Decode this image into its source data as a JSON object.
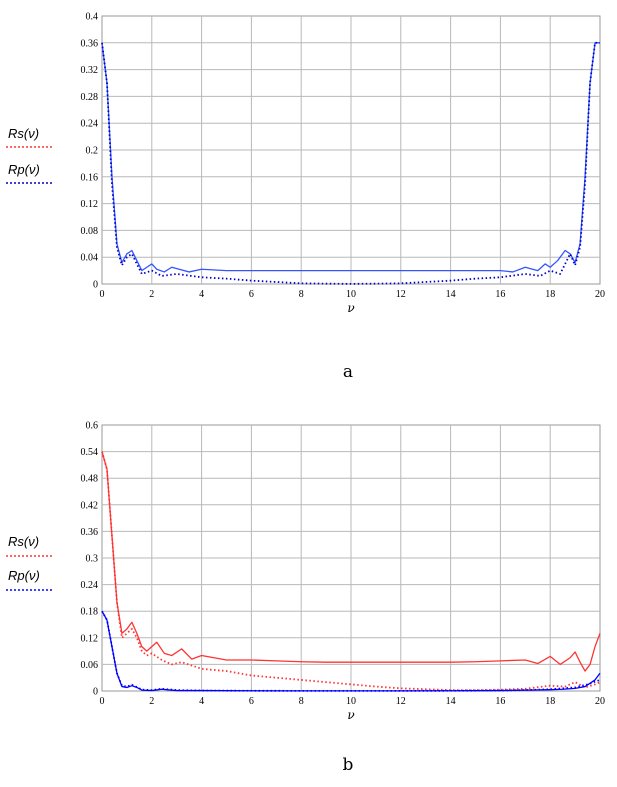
{
  "chart_data": [
    {
      "type": "line",
      "panel_label": "a",
      "xlabel": "ν",
      "xlim": [
        0,
        20
      ],
      "ylim": [
        0,
        0.4
      ],
      "xticks": [
        0,
        2,
        4,
        6,
        8,
        10,
        12,
        14,
        16,
        18,
        20
      ],
      "xtick_labels": [
        "0",
        "2",
        "4",
        "6",
        "8",
        "10",
        "12",
        "14",
        "16",
        "18",
        "20"
      ],
      "yticks": [
        0,
        0.04,
        0.08,
        0.12,
        0.16,
        0.2,
        0.24,
        0.28,
        0.32,
        0.36,
        0.4
      ],
      "ytick_labels": [
        "0",
        "0.04",
        "0.08",
        "0.12",
        "0.16",
        "0.2",
        "0.24",
        "0.28",
        "0.32",
        "0.36",
        "0.4"
      ],
      "grid": true,
      "legend_position": "left",
      "series": [
        {
          "name": "Rs(ν)",
          "color": "#3355ff",
          "style": "solid",
          "x": [
            0,
            0.2,
            0.4,
            0.6,
            0.8,
            1.0,
            1.2,
            1.4,
            1.6,
            1.8,
            2.0,
            2.2,
            2.5,
            2.8,
            3.1,
            3.5,
            4,
            5,
            6,
            7,
            8,
            9,
            10,
            11,
            12,
            13,
            14,
            15,
            16,
            16.5,
            17,
            17.5,
            17.8,
            18.0,
            18.3,
            18.6,
            18.8,
            19.0,
            19.2,
            19.4,
            19.6,
            19.8,
            20
          ],
          "y": [
            0.36,
            0.3,
            0.16,
            0.06,
            0.032,
            0.045,
            0.05,
            0.035,
            0.02,
            0.025,
            0.03,
            0.022,
            0.018,
            0.025,
            0.022,
            0.018,
            0.022,
            0.02,
            0.02,
            0.02,
            0.02,
            0.02,
            0.02,
            0.02,
            0.02,
            0.02,
            0.02,
            0.02,
            0.02,
            0.018,
            0.025,
            0.02,
            0.03,
            0.025,
            0.035,
            0.05,
            0.045,
            0.032,
            0.06,
            0.16,
            0.3,
            0.36,
            0.36
          ]
        },
        {
          "name": "Rp(ν)",
          "color": "#0000cc",
          "style": "dotted",
          "x": [
            0,
            0.2,
            0.4,
            0.6,
            0.8,
            1.0,
            1.2,
            1.4,
            1.6,
            2.0,
            2.4,
            3,
            4,
            5,
            6,
            7,
            8,
            9,
            10,
            11,
            12,
            13,
            14,
            15,
            16,
            17,
            17.6,
            18.0,
            18.4,
            18.6,
            18.8,
            19.0,
            19.2,
            19.4,
            19.6,
            19.8,
            20
          ],
          "y": [
            0.36,
            0.3,
            0.15,
            0.055,
            0.028,
            0.04,
            0.045,
            0.03,
            0.015,
            0.02,
            0.012,
            0.015,
            0.01,
            0.008,
            0.005,
            0.003,
            0.001,
            0.0005,
            0.0002,
            0.0005,
            0.001,
            0.003,
            0.005,
            0.008,
            0.01,
            0.015,
            0.012,
            0.02,
            0.015,
            0.03,
            0.045,
            0.028,
            0.055,
            0.15,
            0.3,
            0.36,
            0.36
          ]
        }
      ]
    },
    {
      "type": "line",
      "panel_label": "b",
      "xlabel": "ν",
      "xlim": [
        0,
        20
      ],
      "ylim": [
        0,
        0.6
      ],
      "xticks": [
        0,
        2,
        4,
        6,
        8,
        10,
        12,
        14,
        16,
        18,
        20
      ],
      "xtick_labels": [
        "0",
        "2",
        "4",
        "6",
        "8",
        "10",
        "12",
        "14",
        "16",
        "18",
        "20"
      ],
      "yticks": [
        0,
        0.06,
        0.12,
        0.18,
        0.24,
        0.3,
        0.36,
        0.42,
        0.48,
        0.54,
        0.6
      ],
      "ytick_labels": [
        "0",
        "0.06",
        "0.12",
        "0.18",
        "0.24",
        "0.3",
        "0.36",
        "0.42",
        "0.48",
        "0.54",
        "0.6"
      ],
      "grid": true,
      "legend_position": "left",
      "series": [
        {
          "name": "Rs(ν)",
          "color": "#ff3333",
          "style": "solid",
          "x": [
            0,
            0.2,
            0.4,
            0.6,
            0.8,
            1.0,
            1.2,
            1.4,
            1.6,
            1.8,
            2.0,
            2.2,
            2.5,
            2.8,
            3.2,
            3.6,
            4.0,
            5,
            6,
            7,
            8,
            9,
            10,
            11,
            12,
            13,
            14,
            15,
            16,
            17,
            17.5,
            18.0,
            18.4,
            18.8,
            19.0,
            19.2,
            19.4,
            19.6,
            19.8,
            20
          ],
          "y": [
            0.54,
            0.5,
            0.35,
            0.2,
            0.13,
            0.14,
            0.155,
            0.13,
            0.1,
            0.09,
            0.1,
            0.11,
            0.085,
            0.08,
            0.095,
            0.072,
            0.08,
            0.07,
            0.07,
            0.068,
            0.066,
            0.065,
            0.065,
            0.065,
            0.065,
            0.065,
            0.065,
            0.066,
            0.068,
            0.07,
            0.062,
            0.078,
            0.06,
            0.075,
            0.088,
            0.065,
            0.045,
            0.06,
            0.1,
            0.13
          ]
        },
        {
          "name": "",
          "color": "#ff3333",
          "style": "dotted",
          "x": [
            0,
            0.2,
            0.4,
            0.6,
            0.8,
            1.0,
            1.2,
            1.4,
            1.6,
            1.8,
            2.0,
            2.4,
            2.8,
            3.2,
            4,
            5,
            6,
            7,
            8,
            9,
            10,
            11,
            12,
            13,
            14,
            15,
            16,
            17,
            18,
            18.6,
            19.0,
            19.4,
            19.8,
            20
          ],
          "y": [
            0.54,
            0.5,
            0.35,
            0.2,
            0.12,
            0.13,
            0.14,
            0.12,
            0.09,
            0.08,
            0.085,
            0.07,
            0.06,
            0.065,
            0.05,
            0.045,
            0.035,
            0.03,
            0.025,
            0.02,
            0.015,
            0.01,
            0.006,
            0.004,
            0.002,
            0.002,
            0.003,
            0.005,
            0.012,
            0.01,
            0.02,
            0.008,
            0.015,
            0.02
          ]
        },
        {
          "name": "Rp(ν)",
          "color": "#0000ff",
          "style": "solid",
          "x": [
            0,
            0.2,
            0.4,
            0.6,
            0.8,
            1.0,
            1.2,
            1.4,
            1.6,
            2.0,
            2.4,
            3,
            4,
            6,
            8,
            10,
            12,
            14,
            16,
            17,
            18,
            18.5,
            19,
            19.4,
            19.8,
            20
          ],
          "y": [
            0.18,
            0.16,
            0.1,
            0.04,
            0.01,
            0.008,
            0.012,
            0.008,
            0.002,
            0.001,
            0.004,
            0.001,
            0.001,
            0.0005,
            0.0003,
            0.0002,
            0.0003,
            0.0005,
            0.001,
            0.002,
            0.003,
            0.004,
            0.006,
            0.01,
            0.025,
            0.04
          ]
        },
        {
          "name": "",
          "color": "#0000ff",
          "style": "dotted",
          "x": [
            0,
            0.2,
            0.4,
            0.6,
            0.8,
            1.0,
            1.2,
            1.4,
            1.6,
            2.0,
            2.4,
            3,
            4,
            6,
            8,
            10,
            12,
            14,
            16,
            17,
            18,
            19,
            19.5,
            20
          ],
          "y": [
            0.18,
            0.16,
            0.1,
            0.04,
            0.012,
            0.01,
            0.014,
            0.009,
            0.003,
            0.002,
            0.005,
            0.002,
            0.001,
            0.0005,
            0.0003,
            0.0002,
            0.0003,
            0.0005,
            0.001,
            0.002,
            0.004,
            0.008,
            0.015,
            0.025
          ]
        }
      ]
    }
  ]
}
